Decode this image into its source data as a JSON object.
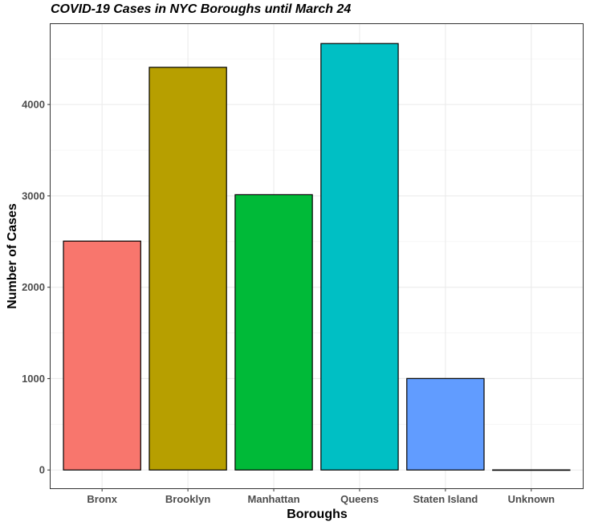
{
  "chart_data": {
    "type": "bar",
    "title": "COVID-19 Cases in NYC Boroughs until March 24",
    "xlabel": "Boroughs",
    "ylabel": "Number of Cases",
    "categories": [
      "Bronx",
      "Brooklyn",
      "Manhattan",
      "Queens",
      "Staten Island",
      "Unknown"
    ],
    "values": [
      2505,
      4407,
      3013,
      4667,
      1001,
      1
    ],
    "colors": [
      "#F8766D",
      "#B79F00",
      "#00BA38",
      "#00BFC4",
      "#619CFF",
      "#F564E3"
    ],
    "ylim": [
      -200,
      4880
    ],
    "yticks": [
      0,
      1000,
      2000,
      3000,
      4000
    ],
    "ytick_labels": [
      "0",
      "1000",
      "2000",
      "3000",
      "4000"
    ],
    "grid": true,
    "legend": "none"
  }
}
